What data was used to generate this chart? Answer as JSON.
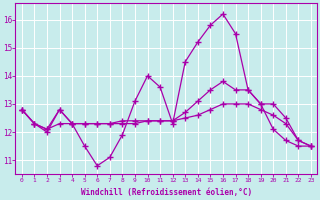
{
  "x": [
    0,
    1,
    2,
    3,
    4,
    5,
    6,
    7,
    8,
    9,
    10,
    11,
    12,
    13,
    14,
    15,
    16,
    17,
    18,
    19,
    20,
    21,
    22,
    23
  ],
  "line1": [
    12.8,
    12.3,
    12.0,
    12.8,
    12.3,
    11.5,
    10.8,
    11.1,
    11.9,
    13.1,
    14.0,
    13.6,
    12.3,
    14.5,
    15.2,
    15.8,
    16.2,
    15.5,
    13.5,
    13.0,
    12.1,
    11.7,
    11.5,
    11.5
  ],
  "line2": [
    12.8,
    12.3,
    12.1,
    12.8,
    12.3,
    12.3,
    12.3,
    12.3,
    12.3,
    12.3,
    12.4,
    12.4,
    12.4,
    12.7,
    13.1,
    13.5,
    13.8,
    13.5,
    13.5,
    13.0,
    13.0,
    12.5,
    11.7,
    11.5
  ],
  "line3": [
    12.8,
    12.3,
    12.1,
    12.3,
    12.3,
    12.3,
    12.3,
    12.3,
    12.4,
    12.4,
    12.4,
    12.4,
    12.4,
    12.5,
    12.6,
    12.8,
    13.0,
    13.0,
    13.0,
    12.8,
    12.6,
    12.3,
    11.7,
    11.5
  ],
  "color": "#aa00aa",
  "bg_color": "#c8ecec",
  "grid_color": "#ffffff",
  "xlabel": "Windchill (Refroidissement éolien,°C)",
  "ylim": [
    10.5,
    16.6
  ],
  "xlim": [
    -0.5,
    23.5
  ],
  "yticks": [
    11,
    12,
    13,
    14,
    15,
    16
  ],
  "xticks": [
    0,
    1,
    2,
    3,
    4,
    5,
    6,
    7,
    8,
    9,
    10,
    11,
    12,
    13,
    14,
    15,
    16,
    17,
    18,
    19,
    20,
    21,
    22,
    23
  ]
}
